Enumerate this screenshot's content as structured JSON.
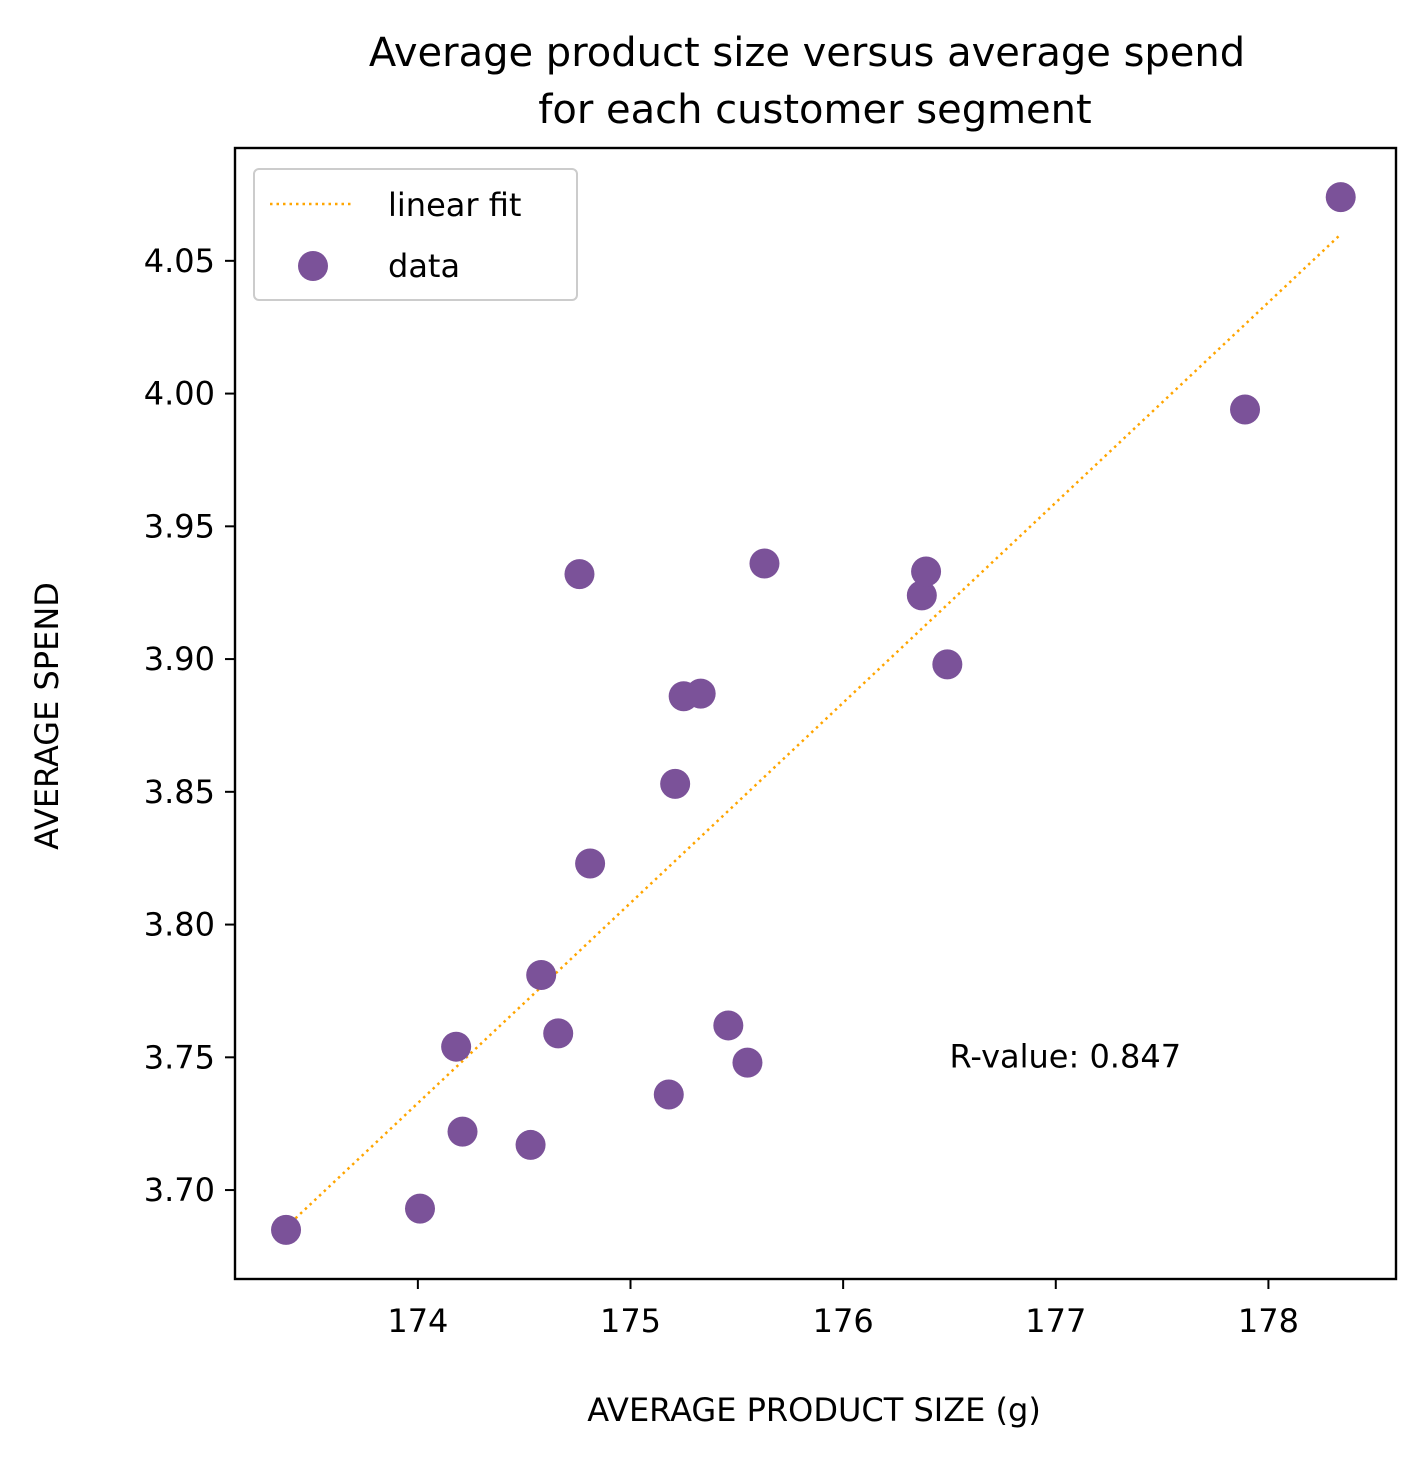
{
  "chart_data": {
    "type": "scatter",
    "title": [
      "Average product size versus average spend",
      "for each customer segment"
    ],
    "xlabel": "AVERAGE PRODUCT SIZE (g)",
    "ylabel": "AVERAGE SPEND",
    "xlim": [
      173.14,
      178.6
    ],
    "ylim": [
      3.6665,
      4.0925
    ],
    "xticks": [
      174,
      175,
      176,
      177,
      178
    ],
    "xtick_labels": [
      "174",
      "175",
      "176",
      "177",
      "178"
    ],
    "yticks": [
      3.7,
      3.75,
      3.8,
      3.85,
      3.9,
      3.95,
      4.0,
      4.05
    ],
    "ytick_labels": [
      "3.70",
      "3.75",
      "3.80",
      "3.85",
      "3.90",
      "3.95",
      "4.00",
      "4.05"
    ],
    "grid": false,
    "legend_position": "top-left",
    "series": [
      {
        "name": "data",
        "kind": "scatter",
        "color": "#7b5299",
        "x": [
          173.38,
          174.01,
          174.18,
          174.21,
          174.53,
          174.58,
          174.66,
          174.76,
          174.81,
          175.18,
          175.21,
          175.25,
          175.33,
          175.46,
          175.55,
          175.63,
          176.37,
          176.39,
          176.49,
          177.89,
          178.34
        ],
        "y": [
          3.685,
          3.693,
          3.754,
          3.722,
          3.717,
          3.781,
          3.759,
          3.932,
          3.823,
          3.736,
          3.853,
          3.886,
          3.887,
          3.762,
          3.748,
          3.936,
          3.924,
          3.933,
          3.898,
          3.994,
          4.074
        ]
      },
      {
        "name": "linear fit",
        "kind": "line",
        "style": "dotted",
        "color": "#ffa500",
        "x": [
          173.38,
          178.34
        ],
        "y": [
          3.686,
          4.06
        ]
      }
    ],
    "annotations": [
      {
        "text": "R-value: 0.847",
        "x": 176.5,
        "y": 3.75
      }
    ]
  }
}
